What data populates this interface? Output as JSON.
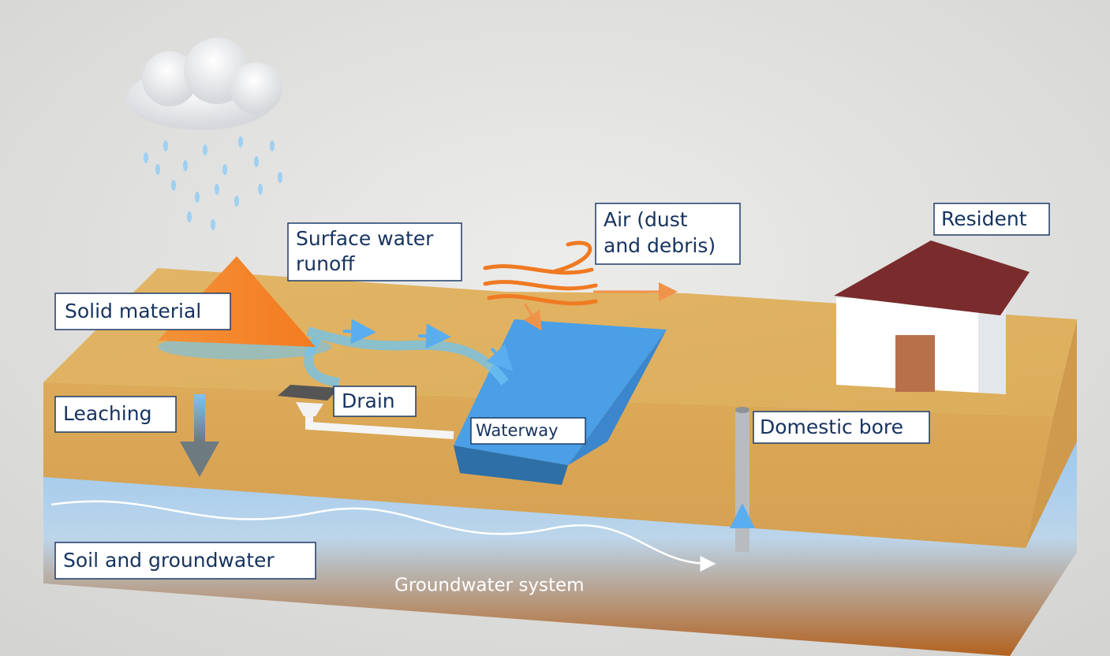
{
  "labels": {
    "solid_material": "Solid material",
    "surface_runoff": [
      "Surface water",
      "runoff"
    ],
    "air": [
      "Air (dust",
      "and debris)"
    ],
    "resident": "Resident",
    "leaching": "Leaching",
    "drain": "Drain",
    "waterway": "Waterway",
    "domestic_bore": "Domestic bore",
    "soil_groundwater": "Soil and groundwater",
    "groundwater_system": "Groundwater system"
  }
}
